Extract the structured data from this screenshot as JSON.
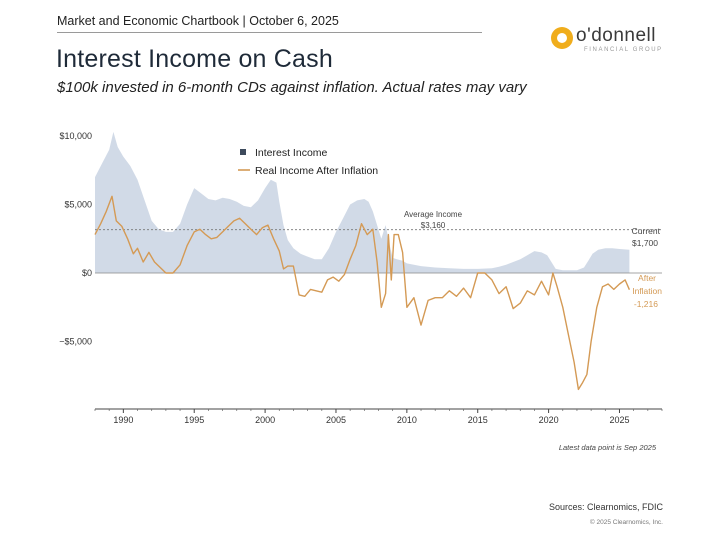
{
  "header": {
    "chartbook": "Market and Economic Chartbook | October 6, 2025",
    "title": "Interest Income on Cash",
    "subtitle": "$100k invested in 6-month CDs against inflation. Actual rates may vary"
  },
  "logo": {
    "name": "o'donnell",
    "sub": "FINANCIAL GROUP",
    "color": "#f0ad1c"
  },
  "footer": {
    "note": "Latest data point is Sep 2025",
    "sources": "Sources: Clearnomics, FDIC",
    "copyright": "© 2025 Clearnomics, Inc."
  },
  "chart_data": {
    "type": "area",
    "title": "Interest Income on Cash",
    "subtitle": "$100k invested in 6-month CDs against inflation. Actual rates may vary",
    "xlim": [
      1988,
      2028
    ],
    "ylim": [
      -10000,
      10000
    ],
    "x_ticks": [
      1990,
      1995,
      2000,
      2005,
      2010,
      2015,
      2020,
      2025
    ],
    "y_ticks": [
      10000,
      5000,
      0,
      -5000
    ],
    "y_tick_labels": [
      "$10,000",
      "$5,000",
      "$0",
      "−$5,000"
    ],
    "grid": false,
    "legend": {
      "placement": "top-left",
      "entries": [
        "Interest Income",
        "Real Income After Inflation"
      ]
    },
    "colors": {
      "interest_income": "#c9d3e3",
      "legend_square": "#3d4a5c",
      "real_income": "#d49a55"
    },
    "series": [
      {
        "name": "Interest Income",
        "kind": "area",
        "x": [
          1988,
          1988.5,
          1989,
          1989.3,
          1989.6,
          1990,
          1990.5,
          1991,
          1991.5,
          1992,
          1992.5,
          1993,
          1993.5,
          1994,
          1994.5,
          1995,
          1995.5,
          1996,
          1996.5,
          1997,
          1997.5,
          1998,
          1998.5,
          1999,
          1999.5,
          2000,
          2000.4,
          2000.8,
          2001,
          2001.3,
          2001.6,
          2002,
          2002.5,
          2003,
          2003.5,
          2004,
          2004.5,
          2005,
          2005.5,
          2006,
          2006.5,
          2007,
          2007.3,
          2007.6,
          2007.9,
          2008.2,
          2008.5,
          2008.8,
          2009,
          2009.3,
          2009.7,
          2010,
          2011,
          2012,
          2013,
          2014,
          2015,
          2016,
          2016.5,
          2017,
          2017.5,
          2018,
          2018.5,
          2019,
          2019.5,
          2019.9,
          2020.2,
          2020.5,
          2021,
          2022,
          2022.5,
          2022.8,
          2023.1,
          2023.5,
          2024,
          2024.5,
          2025,
          2025.7
        ],
        "values": [
          7000,
          8000,
          9000,
          10300,
          9200,
          8500,
          7800,
          6800,
          5300,
          3800,
          3200,
          3000,
          3000,
          3600,
          5000,
          6200,
          5800,
          5400,
          5300,
          5500,
          5400,
          5200,
          4900,
          4800,
          5300,
          6200,
          6800,
          6600,
          5200,
          3500,
          2400,
          1800,
          1400,
          1200,
          1000,
          1000,
          1800,
          3000,
          4000,
          5000,
          5300,
          5400,
          5200,
          4500,
          3500,
          2500,
          3500,
          2000,
          1100,
          1000,
          900,
          700,
          500,
          400,
          350,
          300,
          300,
          350,
          450,
          600,
          800,
          1000,
          1300,
          1600,
          1500,
          1300,
          800,
          300,
          200,
          200,
          400,
          900,
          1400,
          1700,
          1800,
          1800,
          1750,
          1700
        ]
      },
      {
        "name": "Real Income After Inflation",
        "kind": "line",
        "x": [
          1988,
          1988.4,
          1988.8,
          1989.2,
          1989.5,
          1989.9,
          1990.3,
          1990.7,
          1991,
          1991.4,
          1991.8,
          1992.2,
          1992.6,
          1993,
          1993.5,
          1994,
          1994.5,
          1995,
          1995.4,
          1995.8,
          1996.2,
          1996.6,
          1997,
          1997.4,
          1997.8,
          1998.2,
          1998.6,
          1999,
          1999.4,
          1999.8,
          2000.2,
          2000.6,
          2001,
          2001.3,
          2001.6,
          2002,
          2002.4,
          2002.8,
          2003.2,
          2003.6,
          2004,
          2004.4,
          2004.8,
          2005.2,
          2005.6,
          2006,
          2006.4,
          2006.8,
          2007.2,
          2007.6,
          2007.9,
          2008.2,
          2008.5,
          2008.7,
          2008.9,
          2009.1,
          2009.4,
          2009.7,
          2010,
          2010.5,
          2011,
          2011.5,
          2012,
          2012.5,
          2013,
          2013.5,
          2014,
          2014.5,
          2015,
          2015.5,
          2016,
          2016.5,
          2017,
          2017.5,
          2018,
          2018.5,
          2019,
          2019.5,
          2020,
          2020.3,
          2020.6,
          2021,
          2021.4,
          2021.8,
          2022.1,
          2022.4,
          2022.7,
          2023,
          2023.4,
          2023.8,
          2024.2,
          2024.6,
          2025,
          2025.4,
          2025.7
        ],
        "values": [
          2800,
          3600,
          4500,
          5600,
          3800,
          3400,
          2500,
          1400,
          1800,
          800,
          1500,
          800,
          400,
          0,
          0,
          600,
          2000,
          3000,
          3200,
          2800,
          2500,
          2600,
          3000,
          3400,
          3800,
          4000,
          3600,
          3200,
          2800,
          3300,
          3500,
          2500,
          1600,
          300,
          500,
          500,
          -1600,
          -1700,
          -1200,
          -1300,
          -1400,
          -500,
          -300,
          -600,
          -100,
          1000,
          2000,
          3600,
          2800,
          3200,
          800,
          -2500,
          -1500,
          2800,
          -500,
          2800,
          2800,
          1500,
          -2500,
          -1800,
          -3800,
          -2000,
          -1800,
          -1800,
          -1300,
          -1700,
          -1100,
          -1800,
          0,
          0,
          -500,
          -1500,
          -1000,
          -2600,
          -2200,
          -1300,
          -1600,
          -600,
          -1600,
          0,
          -1000,
          -2500,
          -4500,
          -6500,
          -8500,
          -8000,
          -7400,
          -5000,
          -2500,
          -1000,
          -800,
          -1200,
          -800,
          -500,
          -1216
        ]
      }
    ],
    "reference_line": {
      "label": "Average Income",
      "value": 3160,
      "value_label": "$3,160"
    },
    "annotations": [
      {
        "label": "Current",
        "value_label": "$1,700"
      },
      {
        "label": "After Inflation",
        "value_label": "-1,216"
      }
    ]
  }
}
